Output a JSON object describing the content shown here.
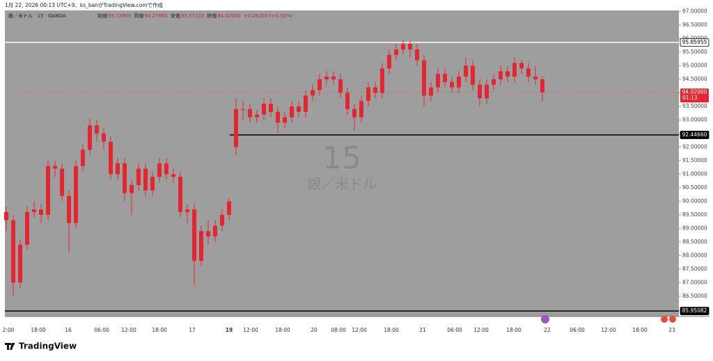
{
  "header": {
    "caption": "1月 22, 2026 00:13 UTC+9、ks_banがTradingView.comで作成"
  },
  "chart_data": {
    "type": "candlestick",
    "symbol": "銀／米ドル · 15 · OANDA",
    "legend": [
      [
        "始値",
        "93.72900"
      ],
      [
        "高値",
        "94.27665"
      ],
      [
        "安値",
        "93.57235"
      ],
      [
        "終値",
        "94.02000"
      ]
    ],
    "change": "+0.28250 (+0.30%)",
    "watermark": {
      "interval": "15",
      "name": "銀／米ドル"
    },
    "color": "#e3262f",
    "ohlc": [
      [
        89.6,
        89.8,
        88.9,
        89.3
      ],
      [
        89.3,
        89.5,
        86.5,
        87.0
      ],
      [
        87.0,
        88.6,
        86.8,
        88.4
      ],
      [
        88.4,
        89.8,
        88.2,
        89.6
      ],
      [
        89.6,
        90.0,
        89.4,
        89.7
      ],
      [
        89.7,
        89.9,
        89.2,
        89.5
      ],
      [
        89.5,
        91.5,
        89.3,
        91.3
      ],
      [
        91.3,
        91.5,
        90.9,
        91.2
      ],
      [
        91.2,
        91.4,
        90.0,
        90.2
      ],
      [
        90.2,
        90.4,
        88.1,
        89.2
      ],
      [
        89.2,
        91.5,
        89.0,
        91.3
      ],
      [
        91.3,
        92.1,
        91.1,
        91.9
      ],
      [
        91.9,
        93.05,
        91.7,
        92.8
      ],
      [
        92.8,
        93.0,
        92.2,
        92.5
      ],
      [
        92.5,
        92.7,
        91.9,
        92.2
      ],
      [
        92.2,
        92.4,
        90.8,
        91.0
      ],
      [
        91.0,
        91.6,
        90.8,
        91.4
      ],
      [
        91.4,
        91.6,
        90.0,
        90.3
      ],
      [
        90.3,
        90.8,
        89.5,
        90.6
      ],
      [
        90.6,
        91.4,
        90.4,
        91.2
      ],
      [
        91.2,
        91.4,
        90.2,
        90.4
      ],
      [
        90.4,
        91.1,
        90.2,
        90.9
      ],
      [
        90.9,
        91.6,
        90.7,
        91.4
      ],
      [
        91.4,
        91.6,
        90.8,
        91.0
      ],
      [
        91.0,
        91.2,
        90.7,
        90.9
      ],
      [
        90.9,
        91.1,
        89.4,
        89.6
      ],
      [
        89.6,
        89.9,
        89.2,
        89.7
      ],
      [
        89.7,
        89.9,
        86.9,
        87.8
      ],
      [
        87.8,
        89.1,
        87.6,
        88.9
      ],
      [
        88.9,
        89.3,
        88.4,
        88.7
      ],
      [
        88.7,
        89.3,
        88.5,
        89.1
      ],
      [
        89.1,
        89.7,
        88.9,
        89.5
      ],
      [
        89.5,
        90.1,
        89.3,
        90.0
      ],
      [
        92.0,
        93.8,
        91.7,
        93.4
      ],
      [
        93.4,
        93.7,
        93.0,
        93.4
      ],
      [
        93.4,
        93.6,
        92.9,
        93.1
      ],
      [
        93.1,
        93.4,
        92.9,
        93.2
      ],
      [
        93.2,
        93.8,
        93.0,
        93.6
      ],
      [
        93.6,
        93.8,
        93.1,
        93.3
      ],
      [
        93.3,
        93.5,
        92.5,
        92.9
      ],
      [
        92.9,
        93.3,
        92.7,
        93.1
      ],
      [
        93.1,
        93.7,
        92.9,
        93.5
      ],
      [
        93.5,
        93.7,
        93.1,
        93.3
      ],
      [
        93.3,
        94.1,
        93.1,
        93.9
      ],
      [
        93.9,
        94.3,
        93.7,
        94.1
      ],
      [
        94.1,
        94.7,
        93.9,
        94.5
      ],
      [
        94.5,
        94.8,
        94.3,
        94.6
      ],
      [
        94.6,
        94.8,
        94.3,
        94.5
      ],
      [
        94.5,
        94.7,
        93.8,
        94.0
      ],
      [
        94.0,
        94.2,
        93.2,
        93.4
      ],
      [
        93.4,
        93.6,
        92.6,
        93.1
      ],
      [
        93.1,
        93.9,
        92.9,
        93.7
      ],
      [
        93.7,
        94.4,
        93.5,
        94.2
      ],
      [
        94.2,
        94.4,
        93.8,
        94.0
      ],
      [
        94.0,
        95.1,
        93.8,
        94.9
      ],
      [
        94.9,
        95.6,
        94.7,
        95.4
      ],
      [
        95.4,
        95.8,
        95.2,
        95.6
      ],
      [
        95.6,
        95.95,
        95.4,
        95.8
      ],
      [
        95.8,
        95.9,
        95.3,
        95.6
      ],
      [
        95.6,
        95.8,
        95.0,
        95.2
      ],
      [
        95.2,
        95.4,
        93.5,
        93.9
      ],
      [
        93.9,
        94.4,
        93.7,
        94.2
      ],
      [
        94.2,
        94.9,
        94.0,
        94.7
      ],
      [
        94.7,
        94.9,
        94.2,
        94.4
      ],
      [
        94.4,
        94.6,
        94.0,
        94.2
      ],
      [
        94.2,
        94.8,
        94.0,
        94.6
      ],
      [
        94.6,
        95.3,
        94.4,
        95.0
      ],
      [
        95.0,
        95.2,
        94.1,
        94.3
      ],
      [
        94.3,
        94.5,
        93.5,
        93.8
      ],
      [
        93.8,
        94.5,
        93.6,
        94.3
      ],
      [
        94.3,
        94.7,
        94.1,
        94.5
      ],
      [
        94.5,
        95.0,
        94.3,
        94.8
      ],
      [
        94.8,
        95.0,
        94.4,
        94.6
      ],
      [
        94.6,
        95.3,
        94.4,
        95.1
      ],
      [
        95.1,
        95.2,
        94.7,
        94.9
      ],
      [
        94.9,
        95.1,
        94.4,
        94.6
      ],
      [
        94.6,
        95.0,
        94.3,
        94.5
      ],
      [
        94.5,
        94.6,
        93.7,
        94.02
      ]
    ],
    "ylim": [
      85.75,
      97.04
    ],
    "yticks": [
      {
        "value": 97,
        "label": "97.00000"
      },
      {
        "value": 96.5,
        "label": "96.50000"
      },
      {
        "value": 96,
        "label": "96.00000"
      },
      {
        "value": 95.5,
        "label": "95.50000"
      },
      {
        "value": 95,
        "label": "95.00000"
      },
      {
        "value": 94.5,
        "label": "94.50000"
      },
      {
        "value": 94,
        "label": "94.00000"
      },
      {
        "value": 93.5,
        "label": "93.50000"
      },
      {
        "value": 93,
        "label": "93.00000"
      },
      {
        "value": 92.5,
        "label": "92.50000"
      },
      {
        "value": 92,
        "label": "92.00000"
      },
      {
        "value": 91.5,
        "label": "91.50000"
      },
      {
        "value": 91,
        "label": "91.00000"
      },
      {
        "value": 90.5,
        "label": "90.50000"
      },
      {
        "value": 90,
        "label": "90.00000"
      },
      {
        "value": 89.5,
        "label": "89.50000"
      },
      {
        "value": 89,
        "label": "89.00000"
      },
      {
        "value": 88.5,
        "label": "88.50000"
      },
      {
        "value": 88,
        "label": "88.00000"
      },
      {
        "value": 87.5,
        "label": "87.50000"
      },
      {
        "value": 87,
        "label": "87.00000"
      },
      {
        "value": 86.5,
        "label": "86.50000"
      }
    ],
    "levels": [
      {
        "value": 95.85955,
        "label": "95.85955",
        "color": "#ffffff"
      },
      {
        "value": 92.4466,
        "label": "92.44660",
        "color": "#000000"
      },
      {
        "value": 85.95082,
        "label": "85.95082",
        "color": "#000000"
      }
    ],
    "last": {
      "value": 94.02,
      "label": "94.02000",
      "countdown": "01:13"
    },
    "xticks": [
      "2:00",
      "18:00",
      "16",
      "06:00",
      "12:00",
      "18:00",
      "17",
      "19",
      "12:00",
      "18:00",
      "20",
      "08:00",
      "12:00",
      "18:00",
      "21",
      "06:00",
      "12:00",
      "18:00",
      "22",
      "06:00",
      "12:00",
      "18:00",
      "23"
    ],
    "brand": "TradingView"
  }
}
